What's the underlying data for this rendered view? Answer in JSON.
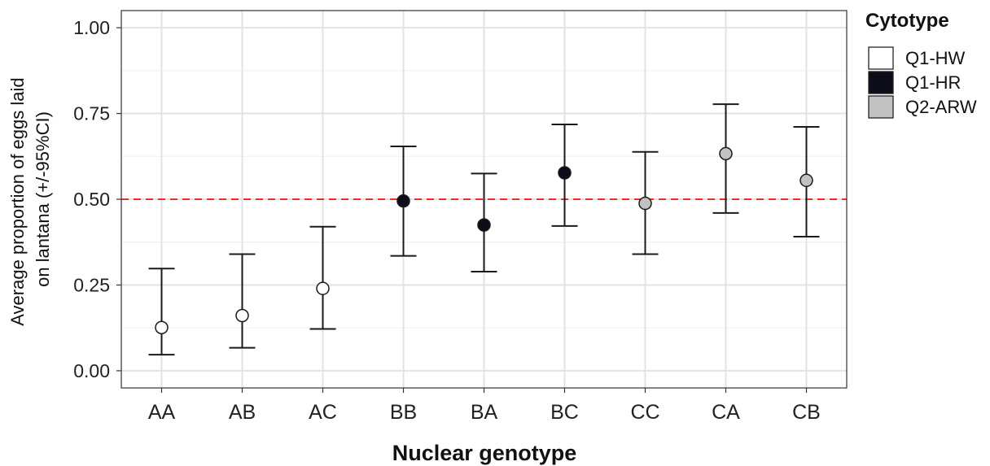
{
  "chart_data": {
    "type": "scatter",
    "xlabel": "Nuclear genotype",
    "ylabel_lines": [
      "Average proportion of eggs laid",
      "on lantana  (+/-95%CI)"
    ],
    "categories": [
      "AA",
      "AB",
      "AC",
      "BB",
      "BA",
      "BC",
      "CC",
      "CA",
      "CB"
    ],
    "ylim": [
      -0.05,
      1.05
    ],
    "yticks": [
      0.0,
      0.25,
      0.5,
      0.75,
      1.0
    ],
    "ytick_labels": [
      "0.00",
      "0.25",
      "0.50",
      "0.75",
      "1.00"
    ],
    "grid": true,
    "reference_line": {
      "y": 0.5,
      "style": "dashed",
      "color": "#e8312a"
    },
    "legend": {
      "title": "Cytotype",
      "placement": "right",
      "entries": [
        {
          "name": "Q1-HW",
          "color": "#ffffff"
        },
        {
          "name": "Q1-HR",
          "color": "#0d0d1a"
        },
        {
          "name": "Q2-ARW",
          "color": "#c2c2c2"
        }
      ]
    },
    "points": [
      {
        "category": "AA",
        "cytotype": "Q1-HW",
        "y": 0.126,
        "lower": 0.047,
        "upper": 0.298
      },
      {
        "category": "AB",
        "cytotype": "Q1-HW",
        "y": 0.161,
        "lower": 0.067,
        "upper": 0.34
      },
      {
        "category": "AC",
        "cytotype": "Q1-HW",
        "y": 0.24,
        "lower": 0.122,
        "upper": 0.42
      },
      {
        "category": "BB",
        "cytotype": "Q1-HR",
        "y": 0.495,
        "lower": 0.335,
        "upper": 0.654
      },
      {
        "category": "BA",
        "cytotype": "Q1-HR",
        "y": 0.425,
        "lower": 0.289,
        "upper": 0.575
      },
      {
        "category": "BC",
        "cytotype": "Q1-HR",
        "y": 0.577,
        "lower": 0.422,
        "upper": 0.718
      },
      {
        "category": "CC",
        "cytotype": "Q2-ARW",
        "y": 0.488,
        "lower": 0.34,
        "upper": 0.638
      },
      {
        "category": "CA",
        "cytotype": "Q2-ARW",
        "y": 0.633,
        "lower": 0.46,
        "upper": 0.777
      },
      {
        "category": "CB",
        "cytotype": "Q2-ARW",
        "y": 0.555,
        "lower": 0.391,
        "upper": 0.711
      }
    ]
  }
}
